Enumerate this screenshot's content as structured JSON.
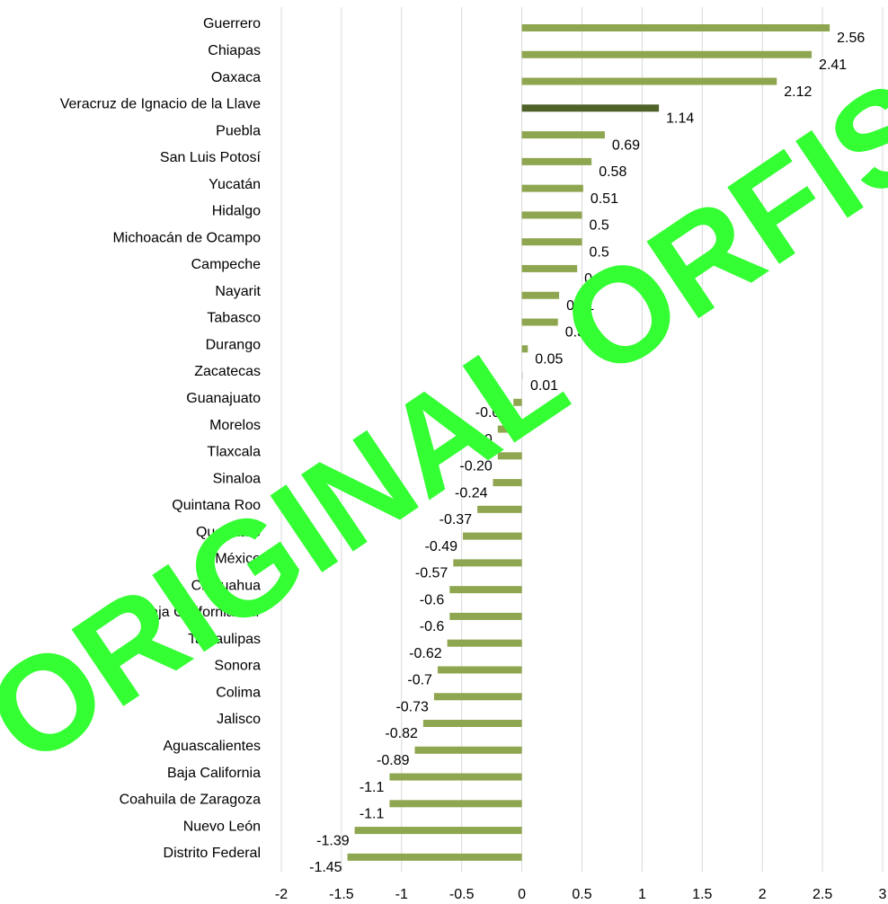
{
  "chart_data": {
    "type": "barh",
    "categories": [
      "Guerrero",
      "Chiapas",
      "Oaxaca",
      "Veracruz de Ignacio de la Llave",
      "Puebla",
      "San Luis Potosí",
      "Yucatán",
      "Hidalgo",
      "Michoacán de Ocampo",
      "Campeche",
      "Nayarit",
      "Tabasco",
      "Durango",
      "Zacatecas",
      "Guanajuato",
      "Morelos",
      "Tlaxcala",
      "Sinaloa",
      "Quintana Roo",
      "Querétaro",
      "México",
      "Chihuahua",
      "Baja California Sur",
      "Tamaulipas",
      "Sonora",
      "Colima",
      "Jalisco",
      "Aguascalientes",
      "Baja California",
      "Coahuila de Zaragoza",
      "Nuevo León",
      "Distrito Federal"
    ],
    "values": [
      2.56,
      2.41,
      2.12,
      1.14,
      0.69,
      0.58,
      0.51,
      0.5,
      0.5,
      0.46,
      0.31,
      0.3,
      0.05,
      0.01,
      -0.07,
      -0.2,
      -0.2,
      -0.24,
      -0.37,
      -0.49,
      -0.57,
      -0.6,
      -0.6,
      -0.62,
      -0.7,
      -0.73,
      -0.82,
      -0.89,
      -1.1,
      -1.1,
      -1.39,
      -1.45
    ],
    "value_labels": [
      "2.56",
      "2.41",
      "2.12",
      "1.14",
      "0.69",
      "0.58",
      "0.51",
      "0.5",
      "0.5",
      "0.46",
      "0.31",
      "0.3",
      "0.05",
      "0.01",
      "-0.07",
      "-0.20",
      "-0.20",
      "-0.24",
      "-0.37",
      "-0.49",
      "-0.57",
      "-0.6",
      "-0.6",
      "-0.62",
      "-0.7",
      "-0.73",
      "-0.82",
      "-0.89",
      "-1.1",
      "-1.1",
      "-1.39",
      "-1.45"
    ],
    "colors": [
      "#8ea64f",
      "#8ea64f",
      "#8ea64f",
      "#4f6228",
      "#8ea64f",
      "#8ea64f",
      "#8ea64f",
      "#8ea64f",
      "#8ea64f",
      "#8ea64f",
      "#8ea64f",
      "#8ea64f",
      "#8ea64f",
      "#d9d9d9",
      "#8ea64f",
      "#8ea64f",
      "#8ea64f",
      "#8ea64f",
      "#8ea64f",
      "#8ea64f",
      "#8ea64f",
      "#8ea64f",
      "#8ea64f",
      "#8ea64f",
      "#8ea64f",
      "#8ea64f",
      "#8ea64f",
      "#8ea64f",
      "#8ea64f",
      "#8ea64f",
      "#8ea64f",
      "#8ea64f"
    ],
    "xlim": [
      -2,
      3
    ],
    "xticks": [
      -2,
      -1.5,
      -1,
      -0.5,
      0,
      0.5,
      1,
      1.5,
      2,
      2.5,
      3
    ],
    "grid": true,
    "annotations": [
      "ORIGINAL ORFIS"
    ]
  }
}
